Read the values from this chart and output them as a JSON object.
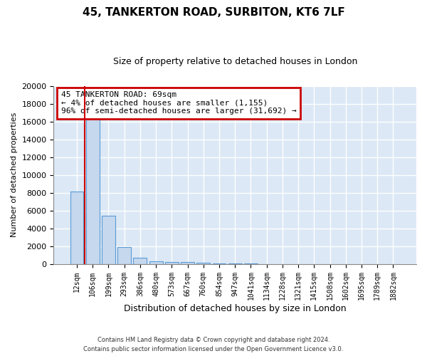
{
  "title": "45, TANKERTON ROAD, SURBITON, KT6 7LF",
  "subtitle": "Size of property relative to detached houses in London",
  "xlabel": "Distribution of detached houses by size in London",
  "ylabel": "Number of detached properties",
  "bar_color": "#c5d8ee",
  "bar_edge_color": "#5b9bd5",
  "bg_color": "#dce8f5",
  "grid_color": "#ffffff",
  "red_color": "#cc0000",
  "annotation_text": "45 TANKERTON ROAD: 69sqm\n← 4% of detached houses are smaller (1,155)\n96% of semi-detached houses are larger (31,692) →",
  "footer": "Contains HM Land Registry data © Crown copyright and database right 2024.\nContains public sector information licensed under the Open Government Licence v3.0.",
  "categories": [
    "12sqm",
    "106sqm",
    "199sqm",
    "293sqm",
    "386sqm",
    "480sqm",
    "573sqm",
    "667sqm",
    "760sqm",
    "854sqm",
    "947sqm",
    "1041sqm",
    "1134sqm",
    "1228sqm",
    "1321sqm",
    "1415sqm",
    "1508sqm",
    "1602sqm",
    "1695sqm",
    "1789sqm",
    "1882sqm"
  ],
  "values": [
    8100,
    16500,
    5400,
    1850,
    700,
    320,
    220,
    180,
    120,
    60,
    20,
    10,
    5,
    3,
    2,
    1,
    1,
    0,
    0,
    0,
    0
  ],
  "ylim": [
    0,
    20000
  ],
  "yticks": [
    0,
    2000,
    4000,
    6000,
    8000,
    10000,
    12000,
    14000,
    16000,
    18000,
    20000
  ],
  "red_line_x": 0.5,
  "title_fontsize": 11,
  "subtitle_fontsize": 9,
  "ann_fontsize": 8,
  "ylabel_fontsize": 8,
  "xlabel_fontsize": 9,
  "tick_fontsize": 7
}
